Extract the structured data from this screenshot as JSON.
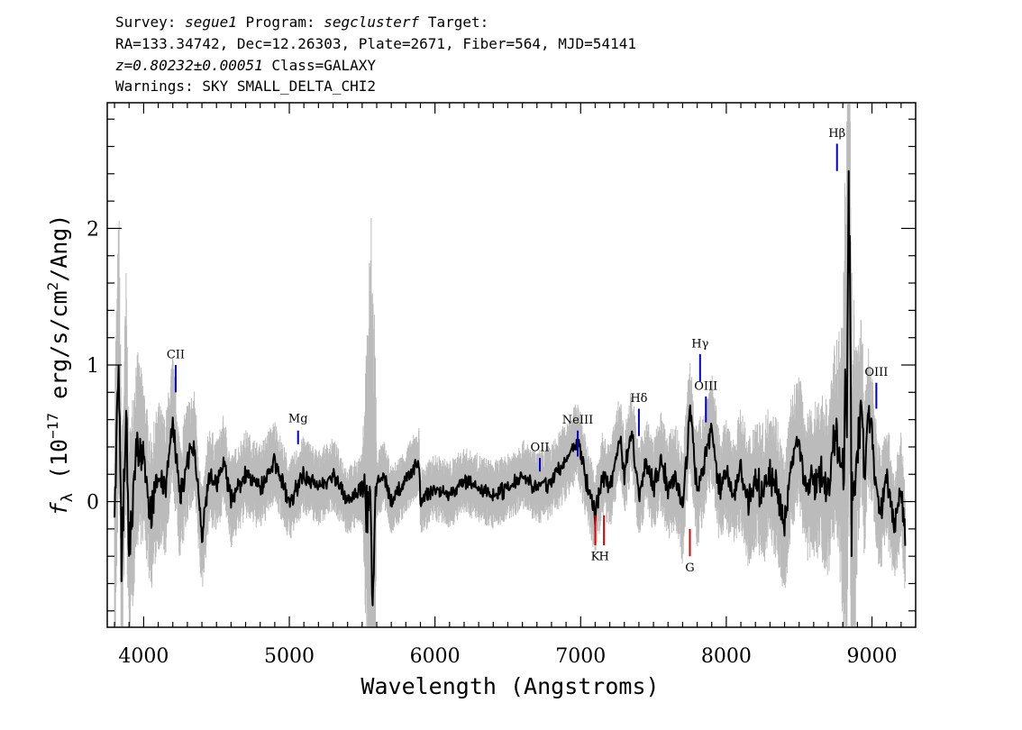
{
  "header": {
    "line1": {
      "survey_label": "Survey:",
      "survey": "segue1",
      "program_label": "Program:",
      "program": "segclusterf",
      "target_label": "Target:"
    },
    "line2": "RA=133.34742, Dec=12.26303, Plate=2671, Fiber=564, MJD=54141",
    "line3": {
      "redshift": "z=0.80232±0.00051",
      "class": "Class=GALAXY"
    },
    "line4": "Warnings: SKY SMALL_DELTA_CHI2"
  },
  "chart_data": {
    "type": "line",
    "xlabel": "Wavelength (Angstroms)",
    "ylabel": "f_λ (10^-17 erg/s/cm^2/Ang)",
    "ylabel_parts": {
      "f": "f",
      "sub": "λ",
      "pre": " (10",
      "exp1": "−17",
      "mid": " erg/s/cm",
      "exp2": "2",
      "post": "/Ang)"
    },
    "xlim": [
      3750,
      9300
    ],
    "ylim": [
      -0.92,
      2.92
    ],
    "x_ticks": [
      4000,
      5000,
      6000,
      7000,
      8000,
      9000
    ],
    "x_tick_labels": [
      "4000",
      "5000",
      "6000",
      "7000",
      "8000",
      "9000"
    ],
    "y_ticks": [
      0,
      1,
      2
    ],
    "y_tick_labels": [
      "0",
      "1",
      "2"
    ],
    "grid": false,
    "legend": "none",
    "colors": {
      "flux": "#000000",
      "noise": "#bbbbbb",
      "emission": "#0000cc",
      "absorption": "#dd0000"
    },
    "series": [
      {
        "role": "flux",
        "x": [
          3800,
          3830,
          3850,
          3880,
          3900,
          3950,
          4000,
          4050,
          4100,
          4150,
          4200,
          4250,
          4300,
          4350,
          4400,
          4450,
          4500,
          4550,
          4600,
          4700,
          4800,
          4900,
          5000,
          5100,
          5200,
          5300,
          5400,
          5500,
          5560,
          5575,
          5590,
          5650,
          5700,
          5800,
          5890,
          5900,
          6000,
          6100,
          6200,
          6300,
          6400,
          6500,
          6600,
          6700,
          6800,
          6900,
          6980,
          7050,
          7100,
          7150,
          7200,
          7270,
          7300,
          7350,
          7400,
          7450,
          7500,
          7550,
          7600,
          7650,
          7700,
          7750,
          7800,
          7850,
          7900,
          7950,
          8000,
          8050,
          8100,
          8150,
          8200,
          8250,
          8300,
          8350,
          8400,
          8450,
          8500,
          8550,
          8600,
          8650,
          8700,
          8750,
          8800,
          8830,
          8845,
          8860,
          8900,
          8930,
          8950,
          8970,
          9000,
          9030,
          9060,
          9100,
          9150,
          9200,
          9230
        ],
        "y": [
          -0.2,
          1.1,
          -0.5,
          0.8,
          -0.4,
          0.4,
          0.3,
          -0.1,
          0.2,
          0.1,
          0.6,
          0.0,
          0.3,
          0.4,
          -0.3,
          0.2,
          0.1,
          0.3,
          0.0,
          0.2,
          0.1,
          0.3,
          0.0,
          0.2,
          0.1,
          0.2,
          0.0,
          0.1,
          0.0,
          -0.68,
          0.1,
          0.2,
          0.0,
          0.15,
          0.3,
          0.0,
          0.1,
          0.05,
          0.15,
          0.1,
          0.05,
          0.1,
          0.2,
          0.1,
          0.15,
          0.3,
          0.45,
          0.1,
          -0.1,
          0.2,
          0.1,
          0.48,
          0.2,
          0.52,
          0.05,
          0.3,
          0.1,
          0.3,
          0.1,
          0.2,
          -0.05,
          0.65,
          0.1,
          0.3,
          0.55,
          0.1,
          0.2,
          0.05,
          0.25,
          0.0,
          0.15,
          0.05,
          0.2,
          0.1,
          -0.2,
          0.3,
          0.45,
          0.1,
          0.15,
          0.2,
          0.1,
          0.5,
          0.2,
          0.85,
          2.33,
          -0.2,
          0.3,
          0.75,
          0.1,
          0.6,
          0.5,
          0.1,
          -0.1,
          0.2,
          -0.2,
          0.1,
          -0.3
        ]
      },
      {
        "role": "noise",
        "x": [
          3800,
          3850,
          3900,
          4000,
          4200,
          4500,
          5000,
          5500,
          5575,
          5600,
          6000,
          6500,
          7000,
          7500,
          7800,
          8000,
          8300,
          8500,
          8750,
          8800,
          8830,
          8900,
          9000,
          9230
        ],
        "y": [
          1.2,
          1.0,
          0.9,
          0.6,
          0.5,
          0.35,
          0.3,
          0.25,
          2.7,
          0.25,
          0.25,
          0.25,
          0.3,
          0.35,
          0.45,
          0.4,
          0.55,
          0.5,
          0.7,
          1.1,
          2.8,
          0.8,
          0.5,
          0.4
        ]
      }
    ],
    "line_markers": [
      {
        "label": "CII",
        "x": 4220,
        "type": "emission",
        "y0": 0.8,
        "y1": 1.0,
        "label_y": 1.05
      },
      {
        "label": "Mg",
        "x": 5060,
        "type": "emission",
        "y0": 0.42,
        "y1": 0.52,
        "label_y": 0.58
      },
      {
        "label": "OII",
        "x": 6720,
        "type": "emission",
        "y0": 0.22,
        "y1": 0.32,
        "label_y": 0.37
      },
      {
        "label": "NeIII",
        "x": 6980,
        "type": "emission",
        "y0": 0.33,
        "y1": 0.52,
        "label_y": 0.57
      },
      {
        "label": "Hδ",
        "x": 7400,
        "type": "emission",
        "y0": 0.48,
        "y1": 0.68,
        "label_y": 0.73
      },
      {
        "label": "Hγ",
        "x": 7820,
        "type": "emission",
        "y0": 0.88,
        "y1": 1.08,
        "label_y": 1.13
      },
      {
        "label": "OIII",
        "x": 7860,
        "type": "emission",
        "y0": 0.58,
        "y1": 0.77,
        "label_y": 0.82
      },
      {
        "label": "Hβ",
        "x": 8760,
        "type": "emission",
        "y0": 2.42,
        "y1": 2.62,
        "label_y": 2.67
      },
      {
        "label": "OIII",
        "x": 9030,
        "type": "emission",
        "y0": 0.68,
        "y1": 0.87,
        "label_y": 0.92
      },
      {
        "label": "K",
        "x": 7100,
        "type": "absorption",
        "y0": -0.1,
        "y1": -0.32,
        "label_y": -0.43
      },
      {
        "label": "H",
        "x": 7160,
        "type": "absorption",
        "y0": -0.1,
        "y1": -0.32,
        "label_y": -0.43
      },
      {
        "label": "G",
        "x": 7750,
        "type": "absorption",
        "y0": -0.2,
        "y1": -0.4,
        "label_y": -0.51
      }
    ]
  }
}
